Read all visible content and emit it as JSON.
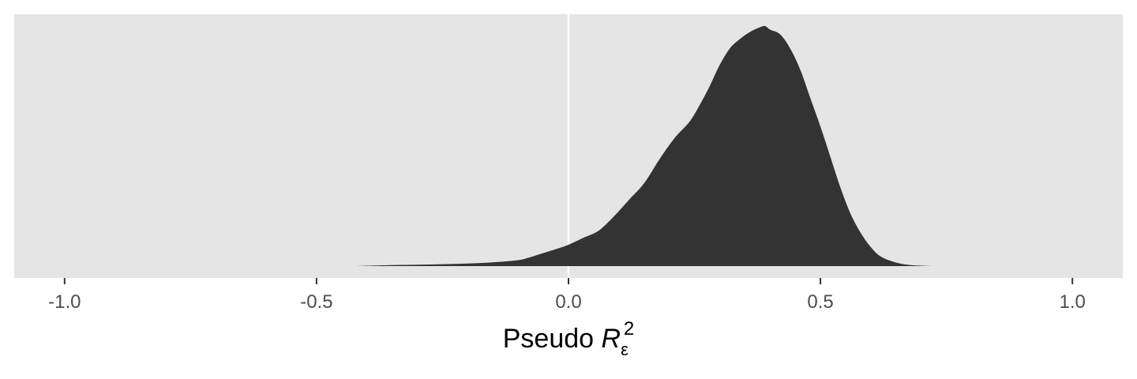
{
  "chart_data": {
    "type": "area",
    "xlabel": {
      "prefix": "Pseudo ",
      "symbol": "R",
      "subscript": "ε",
      "superscript": "2"
    },
    "ylabel": "",
    "xlim": [
      -1.1,
      1.1
    ],
    "ylim": [
      0,
      1.05
    ],
    "xticks": [
      -1.0,
      -0.5,
      0.0,
      0.5,
      1.0
    ],
    "xtick_labels": [
      "-1.0",
      "-0.5",
      "0.0",
      "0.5",
      "1.0"
    ],
    "reference_line_x": 0.0,
    "yaxis_visible": false,
    "grid": false,
    "series": [
      {
        "x": [
          -0.42,
          -0.35,
          -0.3,
          -0.25,
          -0.2,
          -0.15,
          -0.1,
          -0.08,
          -0.05,
          -0.02,
          0.0,
          0.03,
          0.06,
          0.09,
          0.12,
          0.15,
          0.18,
          0.21,
          0.24,
          0.26,
          0.28,
          0.3,
          0.32,
          0.34,
          0.36,
          0.38,
          0.39,
          0.4,
          0.42,
          0.44,
          0.46,
          0.48,
          0.5,
          0.52,
          0.54,
          0.56,
          0.58,
          0.6,
          0.62,
          0.65,
          0.68,
          0.72
        ],
        "y": [
          0.0,
          0.004,
          0.006,
          0.008,
          0.011,
          0.016,
          0.025,
          0.035,
          0.055,
          0.075,
          0.09,
          0.12,
          0.15,
          0.21,
          0.28,
          0.35,
          0.45,
          0.54,
          0.61,
          0.68,
          0.76,
          0.85,
          0.92,
          0.96,
          0.99,
          1.01,
          1.015,
          1.0,
          0.98,
          0.92,
          0.83,
          0.71,
          0.59,
          0.46,
          0.33,
          0.22,
          0.14,
          0.08,
          0.04,
          0.015,
          0.004,
          0.0
        ]
      }
    ],
    "colors": {
      "fill": "#333333",
      "panel_background": "#e5e5e5",
      "reference_line": "#ffffff",
      "tick": "#333333"
    }
  }
}
